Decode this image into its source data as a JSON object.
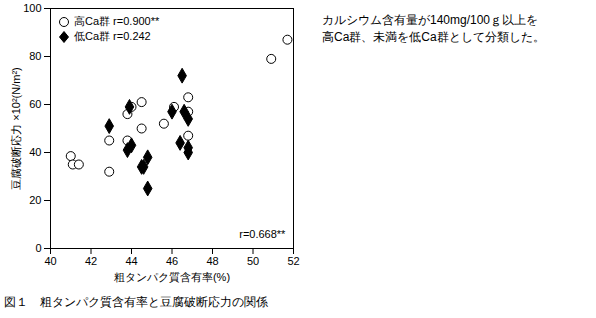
{
  "chart_data": {
    "type": "scatter",
    "title": "図１　粗タンパク質含有率と豆腐破断応力の関係",
    "x_label": "粗タンパク質含有率(%)",
    "y_label": "豆腐破断応力 ×10²(N/m²)",
    "xlim": [
      40,
      52
    ],
    "xticks": [
      40,
      42,
      44,
      46,
      48,
      50,
      52
    ],
    "ylim": [
      0,
      100
    ],
    "yticks": [
      0,
      20,
      40,
      60,
      80,
      100
    ],
    "legend": "top-left",
    "notes": [
      "カルシウム含有量が140mg/100ｇ以上を",
      "高Ca群、未満を低Ca群として分類した。"
    ],
    "annotations": [
      {
        "text": "r=0.668**",
        "x": 51.6,
        "y": 6
      }
    ],
    "series": [
      {
        "name": "高Ca群 r=0.900**",
        "color": "#000000",
        "marker": "circle-open",
        "x": [
          41.0,
          41.1,
          41.4,
          42.9,
          42.9,
          43.8,
          43.8,
          44.0,
          44.5,
          44.5,
          45.6,
          46.1,
          46.8,
          46.8,
          46.8,
          50.9,
          51.7
        ],
        "y": [
          38.5,
          35,
          35,
          45,
          32,
          45,
          56,
          59,
          61,
          50,
          52,
          59,
          63,
          57,
          47,
          79,
          87
        ]
      },
      {
        "name": "低Ca群 r=0.242",
        "color": "#000000",
        "marker": "diamond",
        "x": [
          42.9,
          43.9,
          44.0,
          43.8,
          44.5,
          44.6,
          44.8,
          44.8,
          46.0,
          46.4,
          46.5,
          46.6,
          46.8,
          46.8,
          46.8
        ],
        "y": [
          51,
          59,
          43,
          41,
          34,
          34,
          38,
          25,
          57,
          44,
          72,
          57,
          54,
          42,
          40
        ]
      }
    ]
  }
}
